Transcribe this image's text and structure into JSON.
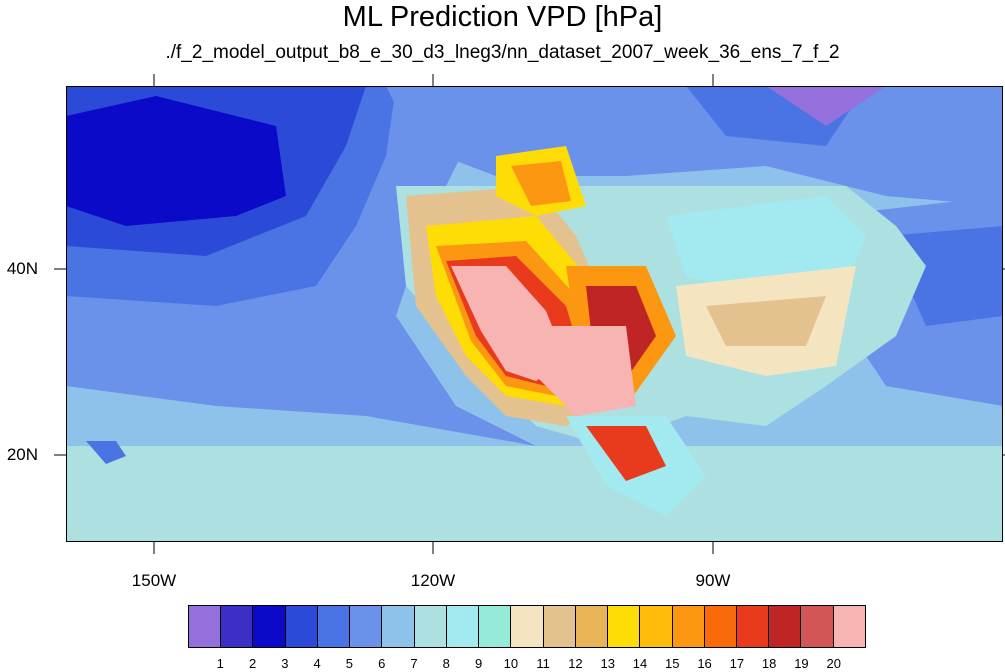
{
  "title": "ML Prediction VPD [hPa]",
  "subtitle": "./f_2_model_output_b8_e_30_d3_lneg3/nn_dataset_2007_week_36_ens_7_f_2",
  "axes": {
    "lon_labels": [
      "150W",
      "120W",
      "90W"
    ],
    "lat_labels": [
      "40N",
      "20N"
    ]
  },
  "colorbar": {
    "labels": [
      "1",
      "2",
      "3",
      "4",
      "5",
      "6",
      "7",
      "8",
      "9",
      "10",
      "11",
      "12",
      "13",
      "14",
      "15",
      "16",
      "17",
      "18",
      "19",
      "20"
    ],
    "colors": [
      "#9370db",
      "#3c2fc8",
      "#0a0ac8",
      "#2c4ad8",
      "#4a74e4",
      "#6a92ea",
      "#8fc2ea",
      "#ade0e0",
      "#a2eaf0",
      "#96ead8",
      "#f5e4c0",
      "#e3c290",
      "#e8b455",
      "#fedc06",
      "#ffbc0a",
      "#fc9711",
      "#f96a0b",
      "#e83b1d",
      "#bf2525",
      "#d25656",
      "#f8b3b3"
    ]
  },
  "chart_data": {
    "type": "heatmap",
    "title": "ML Prediction VPD [hPa]",
    "subtitle": "./f_2_model_output_b8_e_30_d3_lneg3/nn_dataset_2007_week_36_ens_7_f_2",
    "x_ticks": [
      "150W",
      "120W",
      "90W"
    ],
    "y_ticks": [
      "40N",
      "20N"
    ],
    "lon_range": [
      -159,
      -59
    ],
    "lat_range": [
      11,
      60
    ],
    "levels": [
      1,
      2,
      3,
      4,
      5,
      6,
      7,
      8,
      9,
      10,
      11,
      12,
      13,
      14,
      15,
      16,
      17,
      18,
      19,
      20
    ],
    "grid": false
  }
}
